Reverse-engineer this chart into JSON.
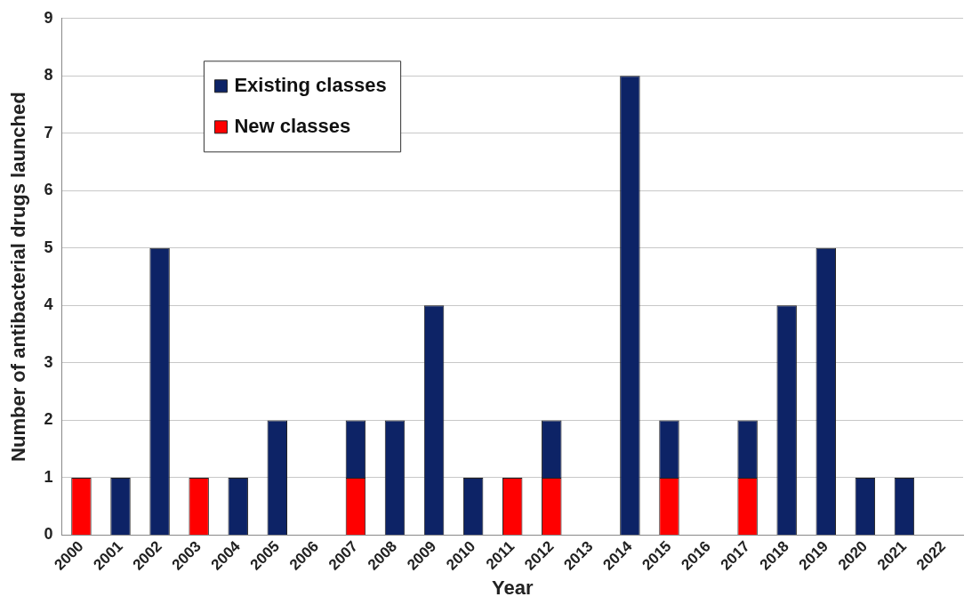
{
  "chart_data": {
    "type": "bar",
    "xlabel": "Year",
    "ylabel": "Number of antibacterial drugs launched",
    "categories": [
      "2000",
      "2001",
      "2002",
      "2003",
      "2004",
      "2005",
      "2006",
      "2007",
      "2008",
      "2009",
      "2010",
      "2011",
      "2012",
      "2013",
      "2014",
      "2015",
      "2016",
      "2017",
      "2018",
      "2019",
      "2020",
      "2021",
      "2022"
    ],
    "series": [
      {
        "name": "New classes",
        "color": "#ff0000",
        "values": [
          1,
          0,
          0,
          1,
          0,
          0,
          0,
          1,
          0,
          0,
          0,
          1,
          1,
          0,
          0,
          1,
          0,
          1,
          0,
          0,
          0,
          0,
          0
        ]
      },
      {
        "name": "Existing classes",
        "color": "#0d2366",
        "values": [
          0,
          1,
          5,
          0,
          1,
          2,
          0,
          1,
          2,
          4,
          1,
          0,
          1,
          0,
          8,
          1,
          0,
          1,
          4,
          5,
          1,
          1,
          0
        ]
      }
    ],
    "stacked": true,
    "ylim": [
      0,
      9
    ],
    "yticks": [
      0,
      1,
      2,
      3,
      4,
      5,
      6,
      7,
      8,
      9
    ],
    "grid": "y",
    "legend": "top left"
  }
}
